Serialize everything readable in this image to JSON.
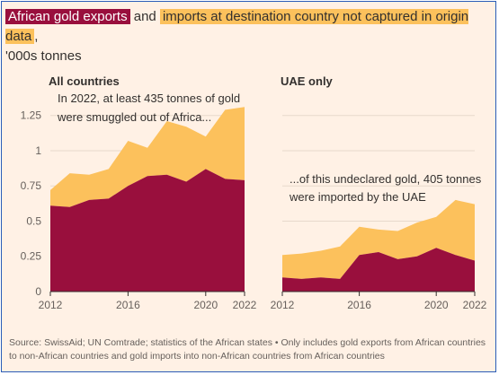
{
  "title": {
    "part1": "African gold exports",
    "part2": " and ",
    "part3": "imports at destination country not captured in origin data",
    "part4": ",",
    "line2": "'000s tonnes"
  },
  "colors": {
    "exports": "#990f3d",
    "not_captured": "#fcc15c",
    "grid": "#e7d9cc",
    "axis": "#33302e",
    "background": "#fff1e5"
  },
  "source": "Source: SwissAid; UN Comtrade; statistics of the African states • Only includes gold exports from African countries to non-African countries and gold imports into non-African countries from African countries",
  "chart_data": [
    {
      "type": "area",
      "panel_title": "All countries",
      "annotation": [
        "In 2022, at least 435 tonnes of gold",
        "were smuggled out of Africa..."
      ],
      "x": [
        2012,
        2013,
        2014,
        2015,
        2016,
        2017,
        2018,
        2019,
        2020,
        2021,
        2022
      ],
      "x_ticks": [
        2012,
        2016,
        2020,
        2022
      ],
      "ylim": [
        0,
        1.35
      ],
      "y_ticks": [
        0,
        0.25,
        0.5,
        0.75,
        1,
        1.25
      ],
      "y_tick_labels": [
        "0",
        "0.25",
        "0.5",
        "0.75",
        "1",
        "1.25"
      ],
      "series": [
        {
          "name": "African gold exports",
          "values": [
            0.61,
            0.6,
            0.65,
            0.66,
            0.75,
            0.82,
            0.83,
            0.78,
            0.87,
            0.8,
            0.79
          ]
        },
        {
          "name": "imports at destination country not captured in origin data",
          "values": [
            0.11,
            0.24,
            0.18,
            0.21,
            0.32,
            0.2,
            0.38,
            0.39,
            0.23,
            0.49,
            0.52
          ]
        }
      ]
    },
    {
      "type": "area",
      "panel_title": "UAE only",
      "annotation": [
        "...of this undeclared gold, 405 tonnes",
        "were imported by the UAE"
      ],
      "x": [
        2012,
        2013,
        2014,
        2015,
        2016,
        2017,
        2018,
        2019,
        2020,
        2021,
        2022
      ],
      "x_ticks": [
        2012,
        2016,
        2020,
        2022
      ],
      "ylim": [
        0,
        1.35
      ],
      "y_ticks": [
        0,
        0.25,
        0.5,
        0.75,
        1,
        1.25
      ],
      "series": [
        {
          "name": "African gold exports",
          "values": [
            0.1,
            0.09,
            0.1,
            0.09,
            0.26,
            0.28,
            0.23,
            0.25,
            0.31,
            0.26,
            0.22
          ]
        },
        {
          "name": "imports at destination country not captured in origin data",
          "values": [
            0.16,
            0.18,
            0.19,
            0.23,
            0.2,
            0.16,
            0.2,
            0.24,
            0.22,
            0.39,
            0.4
          ]
        }
      ]
    }
  ]
}
